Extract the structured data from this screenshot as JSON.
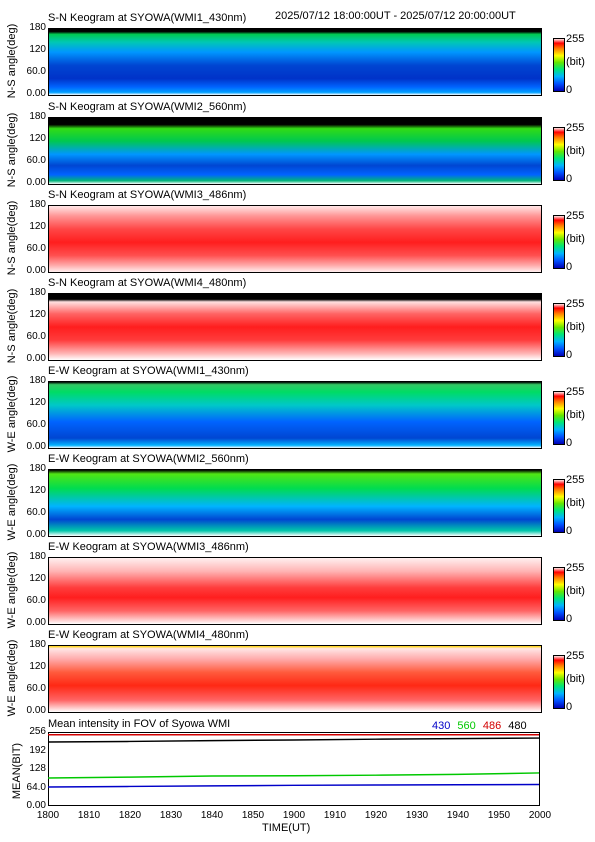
{
  "header": {
    "time_range": "2025/07/12 18:00:00UT - 2025/07/12 20:00:00UT"
  },
  "colorbar": {
    "max": "255",
    "unit": "(bit)",
    "min": "0"
  },
  "keogram_yticks": [
    "180",
    "120",
    "60.0",
    "0.00"
  ],
  "panels": [
    {
      "title": "S-N Keogram at SYOWA(WMI1_430nm)",
      "ylabel": "N-S angle(deg)",
      "style": "blue"
    },
    {
      "title": "S-N Keogram at SYOWA(WMI2_560nm)",
      "ylabel": "N-S angle(deg)",
      "style": "green"
    },
    {
      "title": "S-N Keogram at SYOWA(WMI3_486nm)",
      "ylabel": "N-S angle(deg)",
      "style": "red"
    },
    {
      "title": "S-N Keogram at SYOWA(WMI4_480nm)",
      "ylabel": "N-S angle(deg)",
      "style": "red2"
    },
    {
      "title": "E-W Keogram at SYOWA(WMI1_430nm)",
      "ylabel": "W-E angle(deg)",
      "style": "blue"
    },
    {
      "title": "E-W Keogram at SYOWA(WMI2_560nm)",
      "ylabel": "W-E angle(deg)",
      "style": "green"
    },
    {
      "title": "E-W Keogram at SYOWA(WMI3_486nm)",
      "ylabel": "W-E angle(deg)",
      "style": "red"
    },
    {
      "title": "E-W Keogram at SYOWA(WMI4_480nm)",
      "ylabel": "W-E angle(deg)",
      "style": "red2"
    }
  ],
  "colors": {
    "c430": "#0000c8",
    "c560": "#00c800",
    "c486": "#d20000",
    "c480": "#000000"
  },
  "chart_data": {
    "type": "line",
    "title": "Mean intensity in FOV of Syowa WMI",
    "xlabel": "TIME(UT)",
    "ylabel": "MEAN(BIT)",
    "ylim": [
      0,
      256
    ],
    "xlim": [
      1800,
      2000
    ],
    "x_ticks": [
      "1800",
      "1810",
      "1820",
      "1830",
      "1840",
      "1850",
      "1900",
      "1910",
      "1920",
      "1930",
      "1940",
      "1950",
      "2000"
    ],
    "y_ticks": [
      "256",
      "192",
      "128",
      "64.0",
      "0.00"
    ],
    "x": [
      0,
      20,
      40,
      60,
      80,
      100,
      120
    ],
    "series": [
      {
        "name": "430",
        "color": "#0000c8",
        "values": [
          64,
          66,
          68,
          70,
          71,
          72,
          73
        ]
      },
      {
        "name": "560",
        "color": "#00c800",
        "values": [
          96,
          99,
          103,
          104,
          106,
          109,
          114
        ]
      },
      {
        "name": "486",
        "color": "#d20000",
        "values": [
          250,
          250,
          250,
          250,
          250,
          250,
          250
        ]
      },
      {
        "name": "480",
        "color": "#000000",
        "values": [
          224,
          226,
          229,
          231,
          234,
          236,
          238
        ]
      }
    ]
  }
}
